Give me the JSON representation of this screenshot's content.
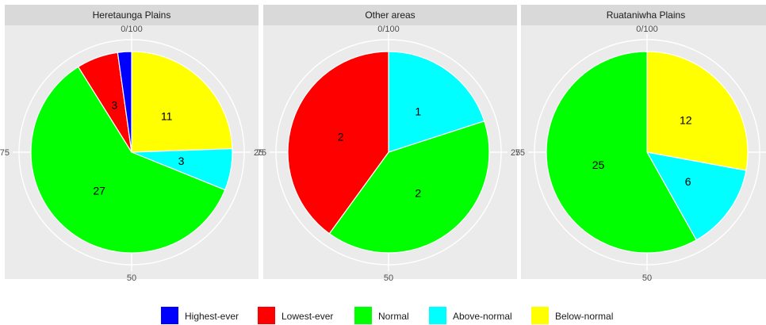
{
  "chart_data": {
    "type": "pie",
    "theta_ticks": [
      "0/100",
      "25",
      "50",
      "75"
    ],
    "legend": {
      "position": "bottom",
      "entries": [
        {
          "name": "Highest-ever",
          "color": "#0000ff"
        },
        {
          "name": "Lowest-ever",
          "color": "#ff0000"
        },
        {
          "name": "Normal",
          "color": "#00ff00"
        },
        {
          "name": "Above-normal",
          "color": "#00ffff"
        },
        {
          "name": "Below-normal",
          "color": "#ffff00"
        }
      ]
    },
    "facets": [
      {
        "title": "Heretaunga Plains",
        "slices": [
          {
            "category": "Below-normal",
            "value": 11,
            "label": "11"
          },
          {
            "category": "Above-normal",
            "value": 3,
            "label": "3"
          },
          {
            "category": "Normal",
            "value": 27,
            "label": "27"
          },
          {
            "category": "Lowest-ever",
            "value": 3,
            "label": "3"
          },
          {
            "category": "Highest-ever",
            "value": 1,
            "label": ""
          }
        ]
      },
      {
        "title": "Other areas",
        "slices": [
          {
            "category": "Above-normal",
            "value": 1,
            "label": "1"
          },
          {
            "category": "Normal",
            "value": 2,
            "label": "2"
          },
          {
            "category": "Lowest-ever",
            "value": 2,
            "label": "2"
          }
        ]
      },
      {
        "title": "Ruataniwha Plains",
        "slices": [
          {
            "category": "Below-normal",
            "value": 12,
            "label": "12"
          },
          {
            "category": "Above-normal",
            "value": 6,
            "label": "6"
          },
          {
            "category": "Normal",
            "value": 25,
            "label": "25"
          }
        ]
      }
    ]
  }
}
